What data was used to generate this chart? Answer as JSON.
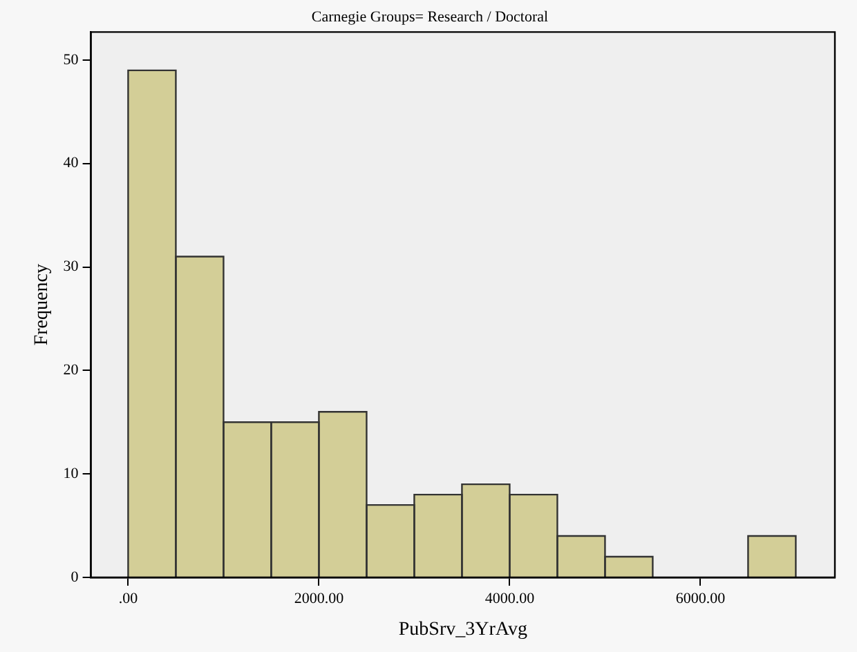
{
  "chart_data": {
    "type": "histogram",
    "title": "Carnegie Groups= Research / Doctoral",
    "xlabel": "PubSrv_3YrAvg",
    "ylabel": "Frequency",
    "bins": [
      0,
      500,
      1000,
      1500,
      2000,
      2500,
      3000,
      3500,
      4000,
      4500,
      5000,
      5500,
      6000,
      6500,
      7000
    ],
    "values": [
      49,
      31,
      15,
      15,
      16,
      7,
      8,
      9,
      8,
      4,
      2,
      0,
      0,
      4
    ],
    "color": "#d3ce97",
    "xlim": [
      -390,
      7410
    ],
    "xticks": [
      {
        "value": 0,
        "label": ".00"
      },
      {
        "value": 2000,
        "label": "2000.00"
      },
      {
        "value": 4000,
        "label": "4000.00"
      },
      {
        "value": 6000,
        "label": "6000.00"
      }
    ],
    "ylim": [
      0,
      52.7
    ],
    "yticks": [
      0,
      10,
      20,
      30,
      40,
      50
    ],
    "grid": false,
    "legend": false
  }
}
